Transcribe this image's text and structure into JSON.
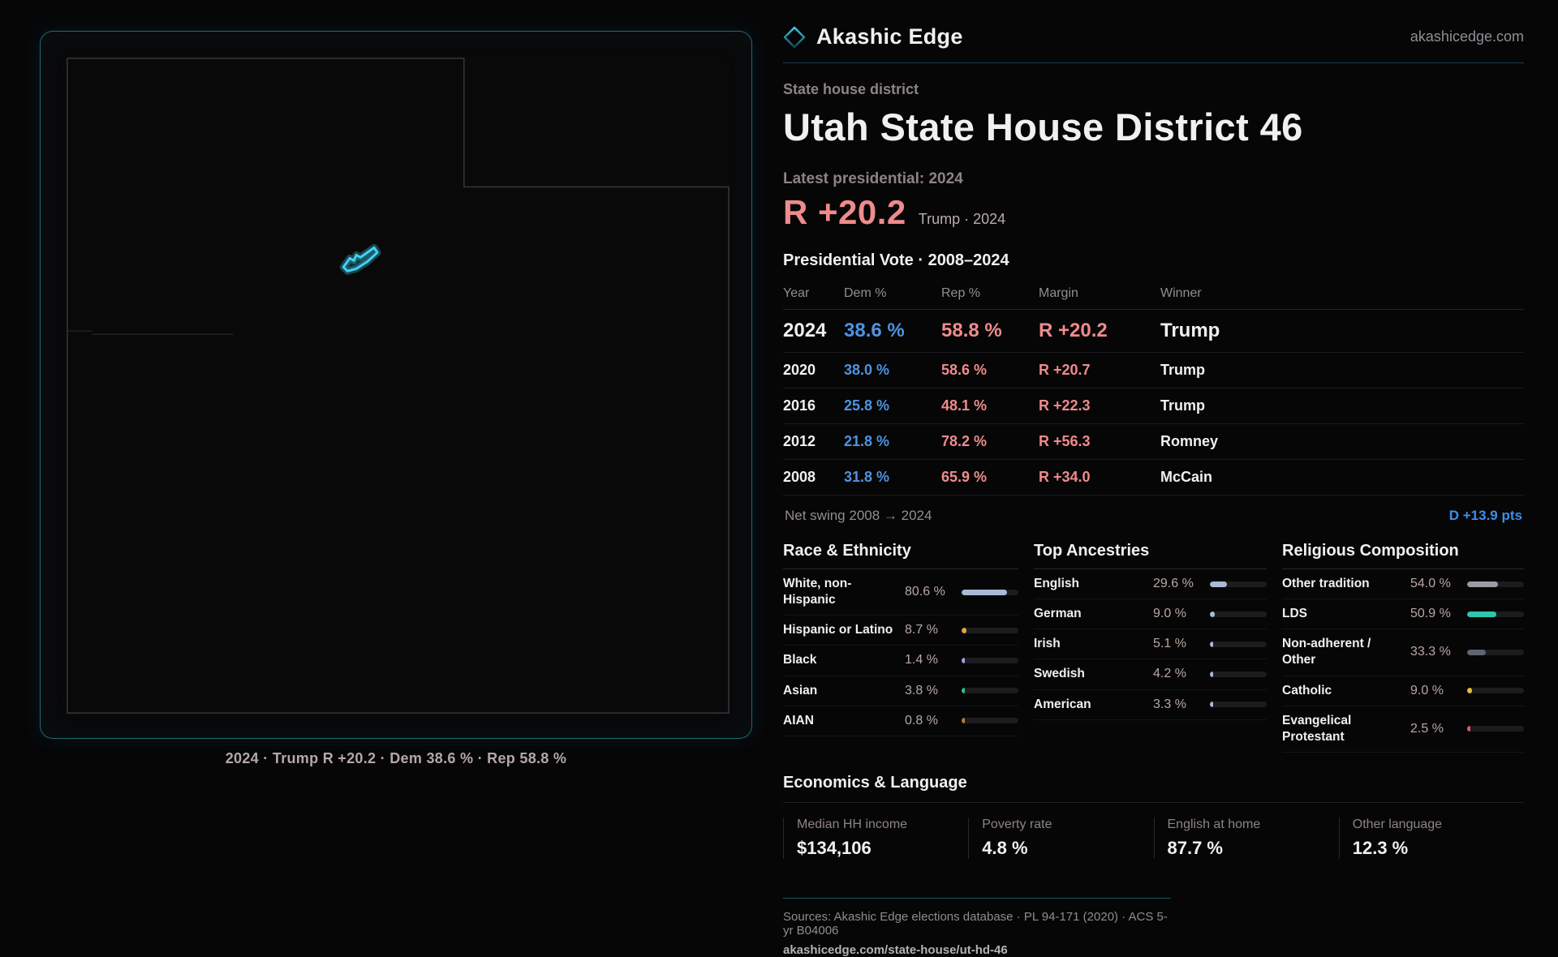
{
  "brand": {
    "name": "Akashic Edge",
    "domain_link": "akashicedge.com",
    "icon": "diamond-icon"
  },
  "header": {
    "kicker": "State house district",
    "title": "Utah State House District 46",
    "latest_label": "Latest presidential: 2024",
    "margin_headline": "R +20.2",
    "margin_context": "Trump · 2024"
  },
  "map": {
    "caption": "2024 · Trump R +20.2 · Dem 38.6 % · Rep 58.8 %",
    "district_color": "#3fd2f2",
    "outline_color": "#37373c"
  },
  "vote_table": {
    "title": "Presidential Vote · 2008–2024",
    "columns": {
      "year": "Year",
      "dem": "Dem %",
      "rep": "Rep %",
      "margin": "Margin",
      "winner": "Winner"
    },
    "rows": [
      {
        "year": "2024",
        "dem": "38.6 %",
        "rep": "58.8 %",
        "margin": "R +20.2",
        "winner": "Trump"
      },
      {
        "year": "2020",
        "dem": "38.0 %",
        "rep": "58.6 %",
        "margin": "R +20.7",
        "winner": "Trump"
      },
      {
        "year": "2016",
        "dem": "25.8 %",
        "rep": "48.1 %",
        "margin": "R +22.3",
        "winner": "Trump"
      },
      {
        "year": "2012",
        "dem": "21.8 %",
        "rep": "78.2 %",
        "margin": "R +56.3",
        "winner": "Romney"
      },
      {
        "year": "2008",
        "dem": "31.8 %",
        "rep": "65.9 %",
        "margin": "R +34.0",
        "winner": "McCain"
      }
    ],
    "net_swing_label": "Net swing 2008 → 2024",
    "net_swing_value": "D +13.9 pts"
  },
  "demographics": {
    "race": {
      "title": "Race & Ethnicity",
      "rows": [
        {
          "label": "White, non-Hispanic",
          "value": "80.6 %",
          "pct": 80.6,
          "color": "#a9bad6"
        },
        {
          "label": "Hispanic or Latino",
          "value": "8.7 %",
          "pct": 8.7,
          "color": "#e8a33c"
        },
        {
          "label": "Black",
          "value": "1.4 %",
          "pct": 1.4,
          "color": "#a7a0e0"
        },
        {
          "label": "Asian",
          "value": "3.8 %",
          "pct": 3.8,
          "color": "#2fbf8f"
        },
        {
          "label": "AIAN",
          "value": "0.8 %",
          "pct": 0.8,
          "color": "#bf7a2e"
        }
      ]
    },
    "ancestries": {
      "title": "Top Ancestries",
      "rows": [
        {
          "label": "English",
          "value": "29.6 %",
          "pct": 29.6,
          "color": "#a9bad6"
        },
        {
          "label": "German",
          "value": "9.0 %",
          "pct": 9.0,
          "color": "#a9bad6"
        },
        {
          "label": "Irish",
          "value": "5.1 %",
          "pct": 5.1,
          "color": "#a9bad6"
        },
        {
          "label": "Swedish",
          "value": "4.2 %",
          "pct": 4.2,
          "color": "#a9bad6"
        },
        {
          "label": "American",
          "value": "3.3 %",
          "pct": 3.3,
          "color": "#a9bad6"
        }
      ]
    },
    "religion": {
      "title": "Religious Composition",
      "rows": [
        {
          "label": "Other tradition",
          "value": "54.0 %",
          "pct": 54.0,
          "color": "#9b9ba3"
        },
        {
          "label": "LDS",
          "value": "50.9 %",
          "pct": 50.9,
          "color": "#2dc7ad"
        },
        {
          "label": "Non-adherent / Other",
          "value": "33.3 %",
          "pct": 33.3,
          "color": "#5d6570"
        },
        {
          "label": "Catholic",
          "value": "9.0 %",
          "pct": 9.0,
          "color": "#e5bd3f"
        },
        {
          "label": "Evangelical Protestant",
          "value": "2.5 %",
          "pct": 2.5,
          "color": "#d95f6b"
        }
      ]
    }
  },
  "economics": {
    "title": "Economics & Language",
    "stats": [
      {
        "label": "Median HH income",
        "value": "$134,106"
      },
      {
        "label": "Poverty rate",
        "value": "4.8 %"
      },
      {
        "label": "English at home",
        "value": "87.7 %"
      },
      {
        "label": "Other language",
        "value": "12.3 %"
      }
    ]
  },
  "footer": {
    "sources": "Sources: Akashic Edge elections database · PL 94-171 (2020) · ACS 5-yr B04006",
    "permalink": "akashicedge.com/state-house/ut-hd-46"
  },
  "colors": {
    "dem_blue": "#4f93e0",
    "rep_red": "#ef8b8b",
    "accent_teal": "#3fd2f2",
    "swing_blue": "#3f8ee8"
  }
}
